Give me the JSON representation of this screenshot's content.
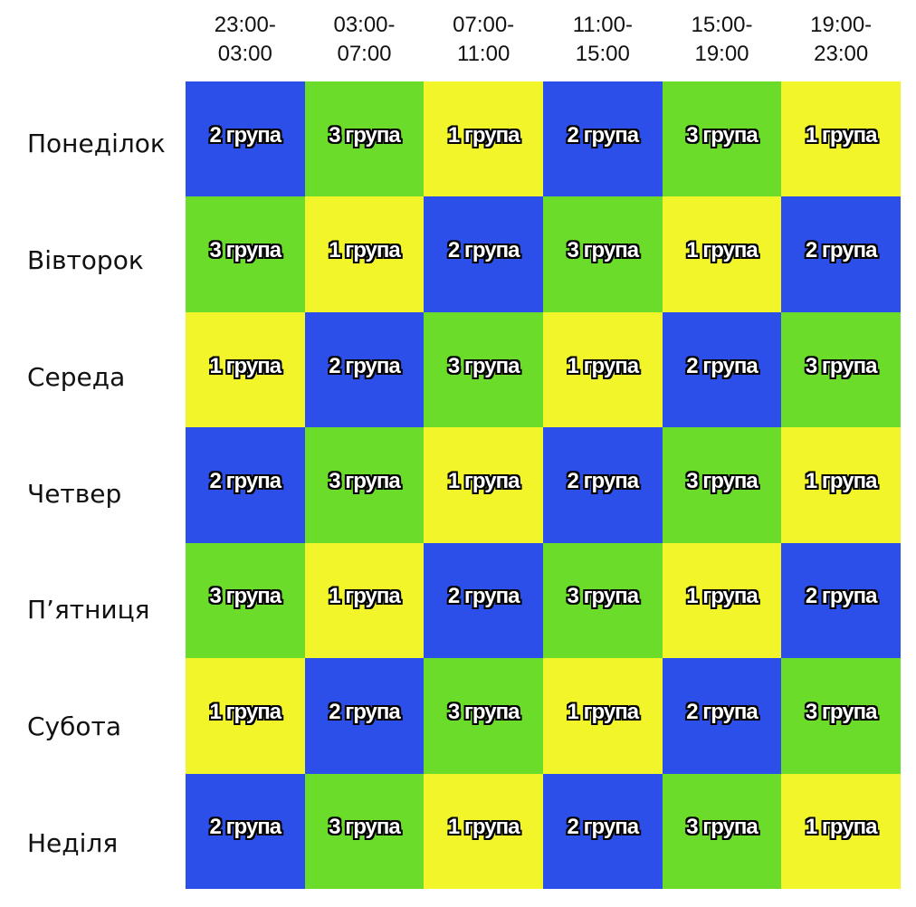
{
  "table": {
    "columns": [
      "23:00-03:00",
      "03:00-07:00",
      "07:00-11:00",
      "11:00-15:00",
      "15:00-19:00",
      "19:00-23:00"
    ],
    "rows": [
      {
        "day": "Понеділок",
        "cells": [
          "2 група",
          "3 група",
          "1 група",
          "2 група",
          "3 група",
          "1 група"
        ]
      },
      {
        "day": "Вівторок",
        "cells": [
          "3 група",
          "1 група",
          "2 група",
          "3 група",
          "1 група",
          "2 група"
        ]
      },
      {
        "day": "Середа",
        "cells": [
          "1 група",
          "2 група",
          "3 група",
          "1 група",
          "2 група",
          "3 група"
        ]
      },
      {
        "day": "Четвер",
        "cells": [
          "2 група",
          "3 група",
          "1 група",
          "2 група",
          "3 група",
          "1 група"
        ]
      },
      {
        "day": "П’ятниця",
        "cells": [
          "3 група",
          "1 група",
          "2 група",
          "3 група",
          "1 група",
          "2 група"
        ]
      },
      {
        "day": "Субота",
        "cells": [
          "1 група",
          "2 група",
          "3 група",
          "1 група",
          "2 група",
          "3 група"
        ]
      },
      {
        "day": "Неділя",
        "cells": [
          "2 група",
          "3 група",
          "1 група",
          "2 група",
          "3 група",
          "1 група"
        ]
      }
    ],
    "group_colors": [
      "#f2f52a",
      "#2b4fe8",
      "#6cdc2a"
    ]
  }
}
